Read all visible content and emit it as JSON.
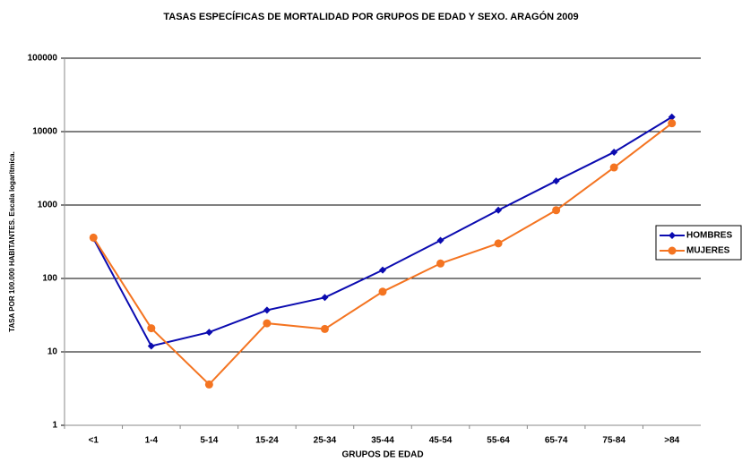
{
  "chart_data": {
    "type": "line",
    "title": "TASAS ESPECÍFICAS DE MORTALIDAD POR GRUPOS DE EDAD Y SEXO.  ARAGÓN 2009",
    "x_label": "GRUPOS DE EDAD",
    "y_label": "TASA POR 100.000 HABITANTES. Escala logarítmica.",
    "categories": [
      "<1",
      "1-4",
      "5-14",
      "15-24",
      "25-34",
      "35-44",
      "45-54",
      "55-64",
      "65-74",
      "75-84",
      ">84"
    ],
    "series": [
      {
        "name": "HOMBRES",
        "color": "#0b0bb0",
        "marker": "diamond",
        "values": [
          350,
          12,
          18.5,
          37,
          55,
          130,
          330,
          850,
          2130,
          5250,
          15800
        ]
      },
      {
        "name": "MUJERES",
        "color": "#f47421",
        "marker": "circle",
        "values": [
          360,
          21,
          3.6,
          24.5,
          20.5,
          66,
          160,
          300,
          850,
          3250,
          13000
        ]
      }
    ],
    "log_scale": true,
    "ylim": [
      1,
      100000
    ],
    "yticks": [
      1,
      10,
      100,
      1000,
      10000,
      100000
    ],
    "grid": true,
    "legend": "right"
  }
}
